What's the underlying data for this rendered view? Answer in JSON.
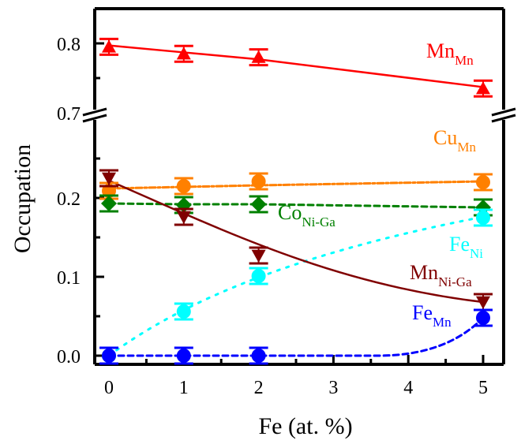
{
  "chart_data": {
    "type": "scatter",
    "title": "",
    "xlabel": "Fe (at. %)",
    "ylabel": "Occupation",
    "x": [
      0,
      1,
      2,
      5
    ],
    "xlim": [
      -0.2,
      5.28
    ],
    "xticks": [
      "0",
      "1",
      "2",
      "3",
      "4",
      "5"
    ],
    "broken_axis": true,
    "upper_panel": {
      "ylim": [
        0.7,
        0.84
      ],
      "yticks": [
        "0.7",
        "0.8"
      ]
    },
    "lower_panel": {
      "ylim": [
        -0.011,
        0.275
      ],
      "yticks": [
        "0.0",
        "0.1",
        "0.2"
      ]
    },
    "grid": false,
    "legend": "inline labels",
    "series": [
      {
        "name": "Mn_Mn",
        "label_main": "Mn",
        "label_sub": "Mn",
        "color": "#ff0000",
        "marker": "triangle-up",
        "line": "solid",
        "panel": "upper",
        "values": [
          0.795,
          0.785,
          0.78,
          0.735
        ],
        "fit": [
          0.797,
          0.787,
          0.777,
          0.737
        ]
      },
      {
        "name": "Cu_Mn",
        "label_main": "Cu",
        "label_sub": "Mn",
        "color": "#ff8000",
        "marker": "circle",
        "line": "dashdot",
        "panel": "lower",
        "values": [
          0.209,
          0.215,
          0.221,
          0.22
        ],
        "fit": [
          0.212,
          0.214,
          0.216,
          0.221
        ]
      },
      {
        "name": "Co_Ni-Ga",
        "label_main": "Co",
        "label_sub": "Ni-Ga",
        "color": "#008000",
        "marker": "diamond",
        "line": "dashed",
        "panel": "lower",
        "values": [
          0.193,
          0.191,
          0.192,
          0.188
        ],
        "fit": [
          0.193,
          0.192,
          0.192,
          0.188
        ]
      },
      {
        "name": "Fe_Ni",
        "label_main": "Fe",
        "label_sub": "Ni",
        "color": "#00ffff",
        "marker": "circle",
        "line": "dotted",
        "panel": "lower",
        "values": [
          0.0,
          0.056,
          0.101,
          0.175
        ],
        "fit": [
          0.0,
          0.053,
          0.096,
          0.176
        ]
      },
      {
        "name": "Mn_Ni-Ga",
        "label_main": "Mn",
        "label_sub": "Ni-Ga",
        "color": "#800000",
        "marker": "triangle-down",
        "line": "solid",
        "panel": "lower",
        "values": [
          0.225,
          0.176,
          0.127,
          0.068
        ],
        "fit": [
          0.222,
          0.18,
          0.145,
          0.068
        ]
      },
      {
        "name": "Fe_Mn",
        "label_main": "Fe",
        "label_sub": "Mn",
        "color": "#0000ff",
        "marker": "circle",
        "line": "dashed",
        "panel": "lower",
        "values": [
          0.0,
          0.0,
          0.0,
          0.048
        ],
        "fit": [
          0.0,
          0.0,
          0.0,
          0.048
        ]
      }
    ]
  }
}
